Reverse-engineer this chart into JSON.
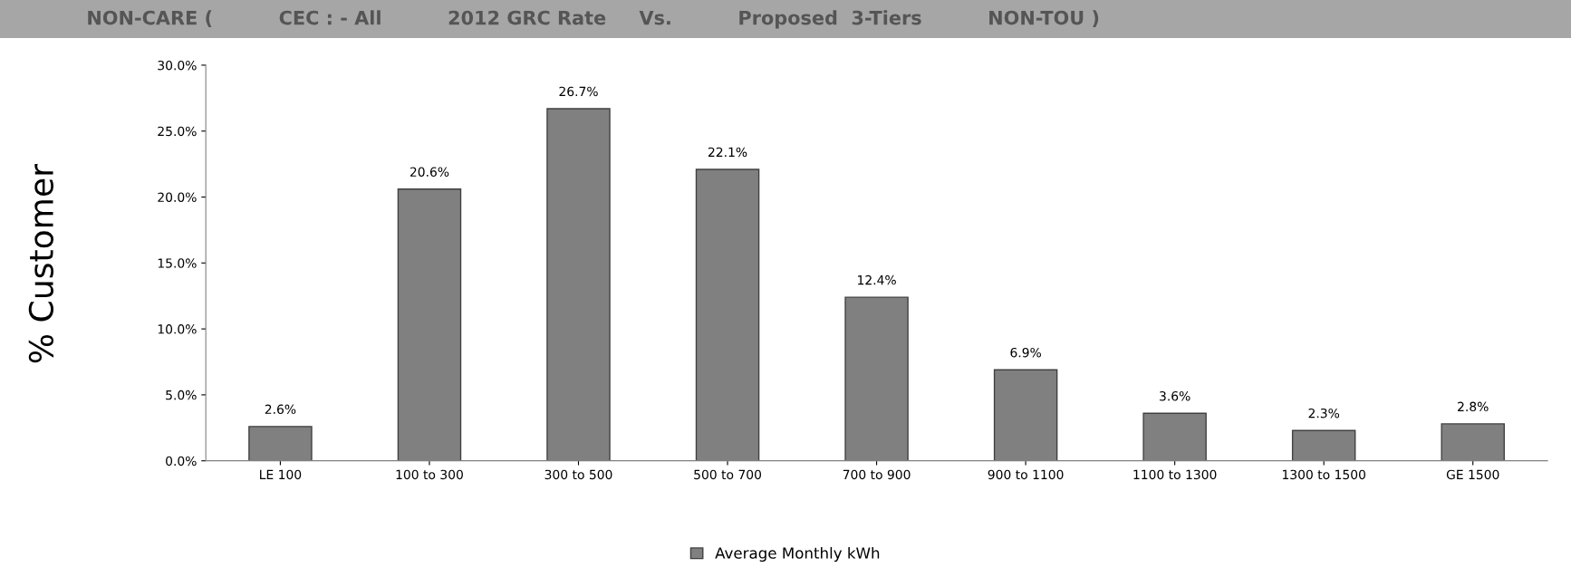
{
  "chart_data": {
    "type": "bar",
    "title": "NON-CARE (          CEC : - All          2012 GRC Rate     Vs.          Proposed  3-Tiers          NON-TOU )",
    "ylabel": "% Customer",
    "categories": [
      "LE 100",
      "100 to 300",
      "300 to 500",
      "500 to 700",
      "700 to 900",
      "900 to 1100",
      "1100 to 1300",
      "1300 to 1500",
      "GE 1500"
    ],
    "series": [
      {
        "name": "Average Monthly kWh",
        "color": "#808080",
        "values": [
          2.6,
          20.6,
          26.7,
          22.1,
          12.4,
          6.9,
          3.6,
          2.3,
          2.8
        ],
        "value_labels": [
          "2.6%",
          "20.6%",
          "26.7%",
          "22.1%",
          "12.4%",
          "6.9%",
          "3.6%",
          "2.3%",
          "2.8%"
        ]
      }
    ],
    "ylim": [
      0,
      30
    ],
    "yticks": [
      {
        "value": 0,
        "label": "0.0%"
      },
      {
        "value": 5,
        "label": "5.0%"
      },
      {
        "value": 10,
        "label": "10.0%"
      },
      {
        "value": 15,
        "label": "15.0%"
      },
      {
        "value": 20,
        "label": "20.0%"
      },
      {
        "value": 25,
        "label": "25.0%"
      },
      {
        "value": 30,
        "label": "30.0%"
      }
    ],
    "grid": false,
    "legend": "bottom"
  }
}
